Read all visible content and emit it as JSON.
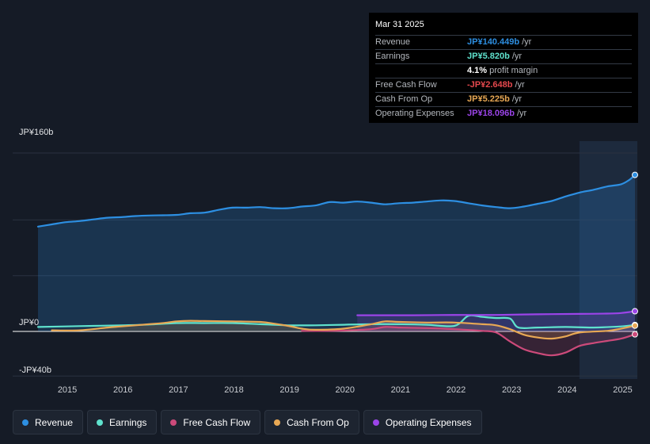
{
  "chart_data": {
    "type": "line",
    "ylim": [
      -40,
      160
    ],
    "y_tick_labels": [
      "JP¥160b",
      "JP¥0",
      "-JP¥40b"
    ],
    "x_ticks": [
      "2015",
      "2016",
      "2017",
      "2018",
      "2019",
      "2020",
      "2021",
      "2022",
      "2023",
      "2024",
      "2025"
    ],
    "highlight_from": 2024.25,
    "series": [
      {
        "name": "Revenue",
        "key": "revenue",
        "color": "#2d8fe2",
        "fill": true,
        "points": [
          [
            2014.5,
            94
          ],
          [
            2014.75,
            96
          ],
          [
            2015,
            98
          ],
          [
            2015.25,
            99
          ],
          [
            2015.5,
            100.5
          ],
          [
            2015.75,
            102
          ],
          [
            2016,
            102.5
          ],
          [
            2016.25,
            103.5
          ],
          [
            2016.5,
            104
          ],
          [
            2016.75,
            104.2
          ],
          [
            2017,
            104.5
          ],
          [
            2017.25,
            106
          ],
          [
            2017.5,
            106.5
          ],
          [
            2017.75,
            109
          ],
          [
            2018,
            111
          ],
          [
            2018.25,
            111
          ],
          [
            2018.5,
            111.5
          ],
          [
            2018.75,
            110.5
          ],
          [
            2019,
            110.5
          ],
          [
            2019.25,
            112
          ],
          [
            2019.5,
            113
          ],
          [
            2019.75,
            116
          ],
          [
            2020,
            115.5
          ],
          [
            2020.25,
            116.5
          ],
          [
            2020.5,
            115.5
          ],
          [
            2020.75,
            114
          ],
          [
            2021,
            115
          ],
          [
            2021.25,
            115.5
          ],
          [
            2021.5,
            116.5
          ],
          [
            2021.75,
            117.5
          ],
          [
            2022,
            117
          ],
          [
            2022.25,
            115
          ],
          [
            2022.5,
            113
          ],
          [
            2022.75,
            111.5
          ],
          [
            2023,
            110.5
          ],
          [
            2023.25,
            112
          ],
          [
            2023.5,
            114.5
          ],
          [
            2023.75,
            117
          ],
          [
            2024,
            121
          ],
          [
            2024.25,
            124.5
          ],
          [
            2024.5,
            127
          ],
          [
            2024.75,
            130
          ],
          [
            2025,
            132
          ],
          [
            2025.15,
            136
          ],
          [
            2025.25,
            140.4
          ]
        ]
      },
      {
        "name": "Earnings",
        "key": "earnings",
        "color": "#5fe2cd",
        "fill": false,
        "points": [
          [
            2014.5,
            4
          ],
          [
            2015,
            4.5
          ],
          [
            2015.5,
            5
          ],
          [
            2016,
            5.5
          ],
          [
            2016.5,
            6.2
          ],
          [
            2017,
            7.5
          ],
          [
            2017.5,
            7.5
          ],
          [
            2018,
            7.5
          ],
          [
            2018.5,
            6.5
          ],
          [
            2019,
            5.5
          ],
          [
            2019.5,
            5.5
          ],
          [
            2020,
            6
          ],
          [
            2020.5,
            6.5
          ],
          [
            2021,
            6.5
          ],
          [
            2021.5,
            6
          ],
          [
            2022,
            5
          ],
          [
            2022.25,
            14
          ],
          [
            2022.5,
            13
          ],
          [
            2022.75,
            12
          ],
          [
            2023,
            11.5
          ],
          [
            2023.15,
            3.5
          ],
          [
            2023.5,
            3.5
          ],
          [
            2024,
            4
          ],
          [
            2024.5,
            3.5
          ],
          [
            2025,
            4.5
          ],
          [
            2025.25,
            5.8
          ]
        ]
      },
      {
        "name": "Free Cash Flow",
        "key": "fcf",
        "color": "#cc4a7a",
        "fill": true,
        "points": [
          [
            2019.25,
            0.5
          ],
          [
            2019.75,
            0.5
          ],
          [
            2020,
            0.8
          ],
          [
            2020.5,
            2
          ],
          [
            2020.75,
            4
          ],
          [
            2021,
            3.5
          ],
          [
            2021.5,
            3
          ],
          [
            2022,
            2
          ],
          [
            2022.5,
            0.5
          ],
          [
            2022.75,
            -1
          ],
          [
            2023,
            -9
          ],
          [
            2023.25,
            -16
          ],
          [
            2023.5,
            -19.5
          ],
          [
            2023.75,
            -21.5
          ],
          [
            2024,
            -19
          ],
          [
            2024.25,
            -13
          ],
          [
            2024.5,
            -10.5
          ],
          [
            2024.75,
            -8.5
          ],
          [
            2025,
            -6.5
          ],
          [
            2025.25,
            -2.6
          ]
        ]
      },
      {
        "name": "Cash From Op",
        "key": "cfo",
        "color": "#e8a854",
        "fill": true,
        "points": [
          [
            2014.75,
            1
          ],
          [
            2015.25,
            1
          ],
          [
            2015.75,
            3.5
          ],
          [
            2016,
            4.5
          ],
          [
            2016.5,
            6.5
          ],
          [
            2016.75,
            7.5
          ],
          [
            2017,
            9
          ],
          [
            2017.25,
            9.5
          ],
          [
            2017.5,
            9.3
          ],
          [
            2018,
            9
          ],
          [
            2018.5,
            8.5
          ],
          [
            2018.75,
            7
          ],
          [
            2019,
            5
          ],
          [
            2019.25,
            2.5
          ],
          [
            2019.5,
            1.5
          ],
          [
            2020,
            2.5
          ],
          [
            2020.5,
            6.5
          ],
          [
            2020.75,
            9
          ],
          [
            2021,
            8.5
          ],
          [
            2021.5,
            8
          ],
          [
            2022,
            8
          ],
          [
            2022.5,
            6.5
          ],
          [
            2022.75,
            5.5
          ],
          [
            2023,
            2
          ],
          [
            2023.25,
            -3
          ],
          [
            2023.5,
            -5.5
          ],
          [
            2023.75,
            -6.5
          ],
          [
            2024,
            -4.5
          ],
          [
            2024.25,
            -1
          ],
          [
            2024.75,
            0.5
          ],
          [
            2025,
            2.5
          ],
          [
            2025.25,
            5.2
          ]
        ]
      },
      {
        "name": "Operating Expenses",
        "key": "opex",
        "color": "#9b44e8",
        "fill": true,
        "points": [
          [
            2020.25,
            14.5
          ],
          [
            2020.75,
            14.5
          ],
          [
            2021.25,
            14.5
          ],
          [
            2021.75,
            14.7
          ],
          [
            2022.25,
            14.8
          ],
          [
            2022.75,
            14.8
          ],
          [
            2023.25,
            15.2
          ],
          [
            2023.75,
            15.5
          ],
          [
            2024.25,
            15.7
          ],
          [
            2024.75,
            16
          ],
          [
            2025,
            16.5
          ],
          [
            2025.25,
            18.1
          ]
        ]
      }
    ]
  },
  "tooltip": {
    "date": "Mar 31 2025",
    "rows": [
      {
        "label": "Revenue",
        "value": "JP¥140.449b",
        "unit": "/yr",
        "color": "#2d8fe2"
      },
      {
        "label": "Earnings",
        "value": "JP¥5.820b",
        "unit": "/yr",
        "color": "#5fe2cd"
      },
      {
        "label": "",
        "value": "4.1%",
        "unit": "profit margin",
        "color": "#ffffff"
      },
      {
        "label": "Free Cash Flow",
        "value": "-JP¥2.648b",
        "unit": "/yr",
        "color": "#e5484d"
      },
      {
        "label": "Cash From Op",
        "value": "JP¥5.225b",
        "unit": "/yr",
        "color": "#e8a854"
      },
      {
        "label": "Operating Expenses",
        "value": "JP¥18.096b",
        "unit": "/yr",
        "color": "#9b44e8"
      }
    ]
  },
  "legend": [
    {
      "label": "Revenue",
      "color": "#2d8fe2"
    },
    {
      "label": "Earnings",
      "color": "#5fe2cd"
    },
    {
      "label": "Free Cash Flow",
      "color": "#cc4a7a"
    },
    {
      "label": "Cash From Op",
      "color": "#e8a854"
    },
    {
      "label": "Operating Expenses",
      "color": "#9b44e8"
    }
  ]
}
